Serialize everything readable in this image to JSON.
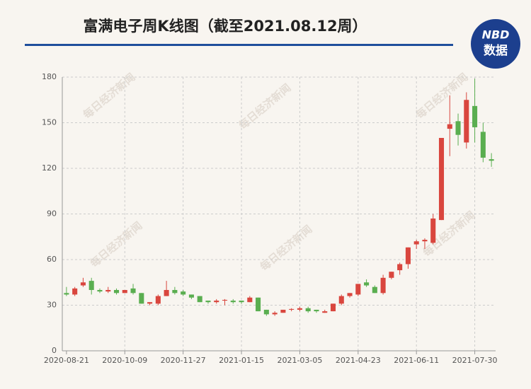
{
  "chart_data": {
    "type": "candlestick",
    "title": "富满电子周K线图（截至2021.08.12周）",
    "logo": {
      "top": "NBD",
      "bottom": "数据"
    },
    "watermark": "每日经济新闻",
    "categories": [
      "2020-08-21",
      null,
      null,
      null,
      null,
      null,
      null,
      "2020-10-09",
      null,
      null,
      null,
      null,
      null,
      null,
      "2020-11-27",
      null,
      null,
      null,
      null,
      null,
      null,
      "2021-01-15",
      null,
      null,
      null,
      null,
      null,
      null,
      "2021-03-05",
      null,
      null,
      null,
      null,
      null,
      null,
      "2021-04-23",
      null,
      null,
      null,
      null,
      null,
      null,
      "2021-06-11",
      null,
      null,
      null,
      null,
      null,
      null,
      "2021-07-30",
      null,
      null
    ],
    "series": {
      "open": [
        38,
        37,
        43,
        46,
        40,
        39,
        40,
        38,
        41,
        38,
        31,
        31,
        36,
        40,
        39,
        37,
        36,
        33,
        32,
        33,
        33,
        33,
        32,
        35,
        27,
        24,
        25,
        27,
        27,
        28,
        27,
        25,
        26,
        31,
        36,
        37,
        45,
        42,
        38,
        48,
        53,
        57,
        70,
        72,
        71,
        86,
        146,
        151,
        137,
        161,
        144,
        126
      ],
      "close": [
        37,
        41,
        45,
        40,
        39,
        40,
        38,
        40,
        38,
        31,
        32,
        36,
        40,
        38,
        37,
        35,
        32,
        32,
        33,
        33.5,
        32,
        32,
        35,
        26,
        24,
        25,
        27,
        27.5,
        28,
        26,
        26,
        26,
        31,
        36,
        38,
        44,
        43,
        38,
        48,
        52,
        57,
        68,
        72,
        73,
        87,
        140,
        149,
        142,
        165,
        147,
        127,
        125
      ],
      "high": [
        42,
        42,
        48,
        48,
        41,
        42,
        41,
        40,
        44,
        38,
        32,
        37,
        46,
        42,
        40,
        37,
        36,
        33,
        34,
        34,
        34,
        33,
        36,
        35,
        27,
        26,
        27,
        28,
        29,
        29,
        27,
        27,
        31,
        37,
        38,
        44,
        47,
        43,
        50,
        52,
        58,
        68,
        73,
        74,
        90,
        140,
        168,
        156,
        170,
        179,
        150,
        130
      ],
      "low": [
        36,
        36,
        42,
        37,
        38,
        38,
        37,
        38,
        37,
        31,
        30,
        30,
        36,
        37,
        36,
        34,
        32,
        31,
        31,
        30,
        31,
        31,
        32,
        26,
        23,
        23,
        25,
        26,
        26,
        25,
        25,
        25,
        26,
        30,
        35,
        36,
        42,
        38,
        37,
        47,
        50,
        54,
        67,
        67,
        70,
        86,
        128,
        135,
        133,
        137,
        124,
        121
      ]
    },
    "up_color": "#d9463e",
    "down_color": "#5aae50",
    "ylim": [
      0,
      180
    ],
    "yticks": [
      0,
      30,
      60,
      90,
      120,
      150,
      180
    ],
    "grid": true
  }
}
